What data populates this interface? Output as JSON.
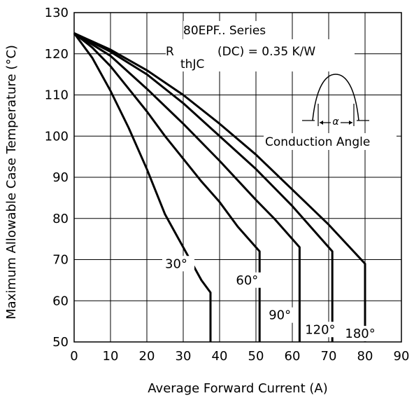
{
  "chart_data": {
    "type": "line",
    "xlabel": "Average Forward Current (A)",
    "ylabel": "Maximum Allowable Case Temperature (°C)",
    "xlim": [
      0,
      90
    ],
    "ylim": [
      50,
      130
    ],
    "x_ticks": [
      0,
      10,
      20,
      30,
      40,
      50,
      60,
      70,
      80,
      90
    ],
    "y_ticks": [
      50,
      60,
      70,
      80,
      90,
      100,
      110,
      120,
      130
    ],
    "grid": true,
    "annotations": {
      "series_title": "80EPF.. Series",
      "rth_symbol": "R",
      "rth_subscript": "thJC",
      "rth_value": "(DC) = 0.35 K/W",
      "conduction_angle": "Conduction Angle",
      "angle_symbol": "α"
    },
    "series": [
      {
        "name": "30°",
        "x": [
          0,
          5,
          10,
          15,
          20,
          25,
          30,
          35,
          37.5,
          37.5
        ],
        "y": [
          125,
          119,
          111,
          102,
          92,
          81,
          73,
          65,
          62,
          50
        ]
      },
      {
        "name": "60°",
        "x": [
          0,
          5,
          10,
          15,
          20,
          25,
          30,
          35,
          40,
          45,
          51,
          51
        ],
        "y": [
          125,
          121.5,
          117,
          111.5,
          106,
          100,
          94.5,
          89,
          84,
          78,
          72,
          50
        ]
      },
      {
        "name": "90°",
        "x": [
          0,
          10,
          20,
          30,
          40,
          50,
          55,
          62,
          62
        ],
        "y": [
          125,
          119.5,
          111.5,
          103,
          94,
          84.5,
          80,
          73,
          50
        ]
      },
      {
        "name": "120°",
        "x": [
          0,
          10,
          20,
          30,
          40,
          50,
          60,
          71,
          71
        ],
        "y": [
          125,
          120.5,
          115,
          108,
          100,
          92,
          83,
          72,
          50
        ]
      },
      {
        "name": "180°",
        "x": [
          0,
          10,
          20,
          30,
          40,
          50,
          60,
          70,
          80,
          80
        ],
        "y": [
          125,
          121,
          116,
          110,
          103,
          95.5,
          87,
          78.5,
          69,
          50
        ]
      }
    ]
  }
}
